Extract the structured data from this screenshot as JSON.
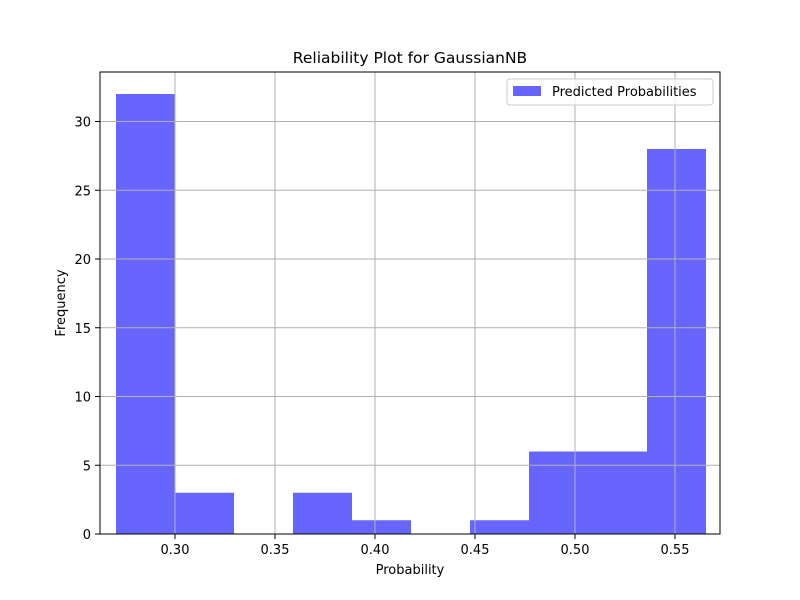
{
  "chart_data": {
    "type": "bar",
    "title": "Reliability Plot for GaussianNB",
    "xlabel": "Probability",
    "ylabel": "Frequency",
    "xlim": [
      0.2625,
      0.5725
    ],
    "ylim": [
      0,
      33.6
    ],
    "xticks": [
      0.3,
      0.35,
      0.4,
      0.45,
      0.5,
      0.55
    ],
    "xtick_labels": [
      "0.30",
      "0.35",
      "0.40",
      "0.45",
      "0.50",
      "0.55"
    ],
    "yticks": [
      0,
      5,
      10,
      15,
      20,
      25,
      30
    ],
    "ytick_labels": [
      "0",
      "5",
      "10",
      "15",
      "20",
      "25",
      "30"
    ],
    "grid": true,
    "legend_position": "top-right",
    "series": [
      {
        "name": "Predicted Probabilities",
        "color": "#6666ff",
        "bins": [
          {
            "x0": 0.2705,
            "x1": 0.3,
            "count": 32
          },
          {
            "x0": 0.3,
            "x1": 0.3295,
            "count": 3
          },
          {
            "x0": 0.3295,
            "x1": 0.359,
            "count": 0
          },
          {
            "x0": 0.359,
            "x1": 0.3885,
            "count": 3
          },
          {
            "x0": 0.3885,
            "x1": 0.418,
            "count": 1
          },
          {
            "x0": 0.418,
            "x1": 0.4475,
            "count": 0
          },
          {
            "x0": 0.4475,
            "x1": 0.477,
            "count": 1
          },
          {
            "x0": 0.477,
            "x1": 0.5065,
            "count": 6
          },
          {
            "x0": 0.5065,
            "x1": 0.536,
            "count": 6
          },
          {
            "x0": 0.536,
            "x1": 0.5655,
            "count": 28
          }
        ]
      }
    ]
  }
}
